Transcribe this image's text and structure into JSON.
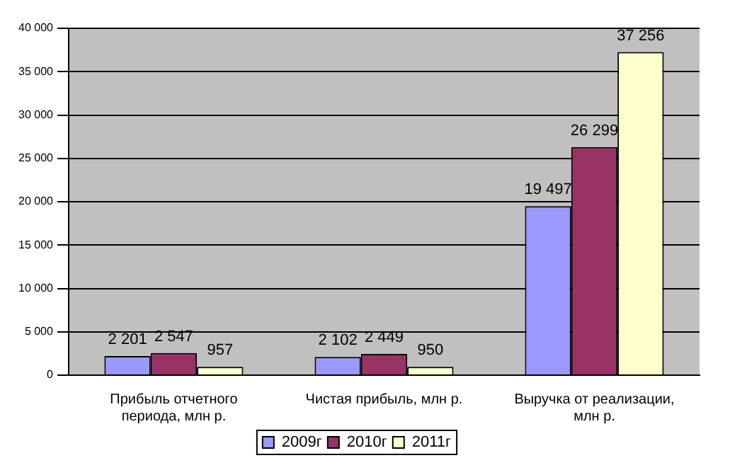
{
  "chart_data": {
    "type": "bar",
    "categories": [
      "Прибыль отчетного периода, млн р.",
      "Чистая прибыль, млн р.",
      "Выручка от реализации, млн р."
    ],
    "series": [
      {
        "name": "2009г",
        "color": "#9999ff",
        "values": [
          2201,
          2102,
          19497
        ],
        "value_labels": [
          "2 201",
          "2 102",
          "19 497"
        ]
      },
      {
        "name": "2010г",
        "color": "#993366",
        "values": [
          2547,
          2449,
          26299
        ],
        "value_labels": [
          "2 547",
          "2 449",
          "26 299"
        ]
      },
      {
        "name": "2011г",
        "color": "#ffffcc",
        "values": [
          957,
          950,
          37256
        ],
        "value_labels": [
          "957",
          "950",
          "37 256"
        ]
      }
    ],
    "ylim": [
      0,
      40000
    ],
    "yticks": [
      {
        "value": 0,
        "label": "0"
      },
      {
        "value": 5000,
        "label": "5 000"
      },
      {
        "value": 10000,
        "label": "10 000"
      },
      {
        "value": 15000,
        "label": "15 000"
      },
      {
        "value": 20000,
        "label": "20 000"
      },
      {
        "value": 25000,
        "label": "25 000"
      },
      {
        "value": 30000,
        "label": "30 000"
      },
      {
        "value": 35000,
        "label": "35 000"
      },
      {
        "value": 40000,
        "label": "40 000"
      }
    ],
    "grid": "y",
    "legend": "bottom"
  }
}
